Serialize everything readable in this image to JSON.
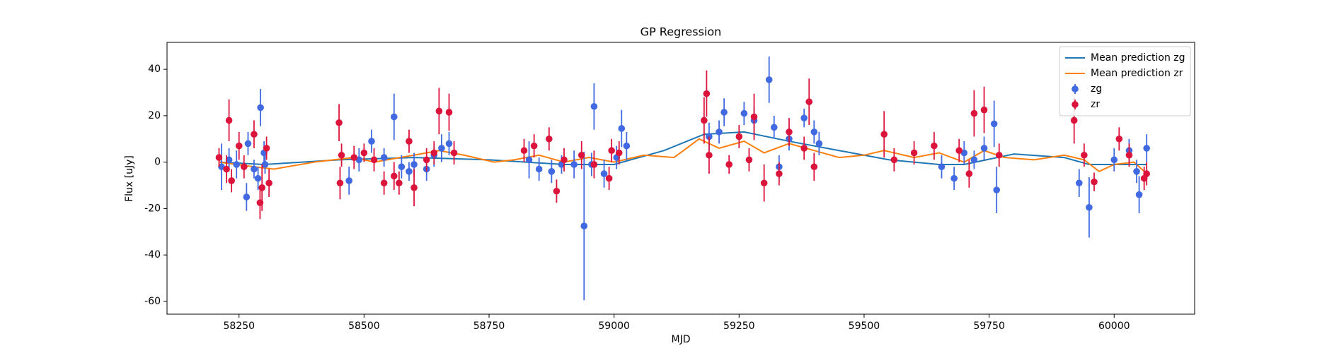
{
  "chart_data": {
    "type": "scatter",
    "title": "GP Regression",
    "x_label": "MJD",
    "y_label": "Flux [uJy]",
    "xlim": [
      58106,
      60161
    ],
    "ylim": [
      -65.5,
      51.6
    ],
    "xticks": [
      58250,
      58500,
      58750,
      59000,
      59250,
      59500,
      59750,
      60000
    ],
    "yticks": [
      -60,
      -40,
      -20,
      0,
      20,
      40
    ],
    "legend": "upper right",
    "series": [
      {
        "name": "Mean prediction zg",
        "kind": "line",
        "color": "#1f77b4",
        "x": [
          58210,
          58300,
          58450,
          58600,
          58750,
          58900,
          59000,
          59100,
          59180,
          59260,
          59350,
          59450,
          59550,
          59650,
          59700,
          59800,
          59900,
          59950,
          60050,
          60065
        ],
        "values": [
          0,
          -1,
          1,
          2,
          1,
          -1,
          -1,
          5,
          12,
          13,
          9,
          5,
          1,
          -1,
          -1,
          3.5,
          2,
          -1,
          -1,
          -1
        ]
      },
      {
        "name": "Mean prediction zr",
        "kind": "line",
        "color": "#ff7f0e",
        "x": [
          58210,
          58280,
          58320,
          58400,
          58480,
          58520,
          58600,
          58650,
          58700,
          58760,
          58800,
          58850,
          58900,
          58950,
          59000,
          59060,
          59120,
          59170,
          59210,
          59260,
          59300,
          59350,
          59400,
          59450,
          59500,
          59540,
          59600,
          59650,
          59700,
          59740,
          59780,
          59840,
          59900,
          59940,
          59970,
          60000,
          60040,
          60065
        ],
        "values": [
          0,
          -2,
          -3,
          0,
          2,
          0,
          3,
          5,
          3,
          0,
          1,
          3,
          0,
          2,
          0,
          3,
          2,
          10,
          6,
          9,
          4,
          8,
          5,
          2,
          3,
          5,
          2,
          4,
          0,
          5,
          2,
          1,
          3,
          1,
          -4,
          -1,
          0,
          -5
        ]
      },
      {
        "name": "zg",
        "kind": "errorbar",
        "color": "#4169e1",
        "x": [
          58215,
          58230,
          58245,
          58265,
          58268,
          58280,
          58288,
          58293,
          58300,
          58302,
          58470,
          58490,
          58515,
          58540,
          58560,
          58575,
          58590,
          58600,
          58625,
          58640,
          58655,
          58670,
          58830,
          58850,
          58875,
          58895,
          58920,
          58940,
          58955,
          58960,
          58980,
          59005,
          59015,
          59025,
          59190,
          59210,
          59220,
          59260,
          59280,
          59310,
          59320,
          59330,
          59350,
          59380,
          59400,
          59410,
          59655,
          59680,
          59700,
          59720,
          59740,
          59760,
          59765,
          59930,
          59950,
          60000,
          60030,
          60045,
          60050,
          60065
        ],
        "values": [
          -2,
          1,
          -1,
          -15,
          8,
          -3,
          -7,
          23.5,
          4,
          -1,
          -8,
          1,
          9,
          2,
          19.5,
          -2,
          -4,
          -1,
          -3,
          3,
          6,
          8,
          1,
          -3,
          -4,
          -1,
          -1,
          -27.5,
          -1,
          24,
          -5,
          2,
          14.5,
          7,
          11,
          13,
          21.5,
          21,
          18,
          35.5,
          15,
          -2,
          10,
          19,
          13,
          8,
          -2,
          -7,
          4,
          1,
          6,
          16.5,
          -12,
          -9,
          -19.5,
          1,
          5,
          -4,
          -14,
          6
        ],
        "errors": [
          10,
          5,
          6,
          6,
          5,
          4,
          5,
          8,
          5,
          4,
          6,
          5,
          5,
          4,
          10,
          5,
          4,
          5,
          5,
          5,
          6,
          5,
          8,
          5,
          5,
          4,
          6,
          32,
          5,
          10,
          6,
          5,
          8,
          6,
          6,
          5,
          6,
          5,
          6,
          10,
          5,
          5,
          5,
          4,
          5,
          5,
          5,
          5,
          5,
          4,
          5,
          10,
          10,
          6,
          13,
          5,
          5,
          5,
          8,
          6
        ]
      },
      {
        "name": "zr",
        "kind": "errorbar",
        "color": "#dc143c",
        "x": [
          58210,
          58225,
          58230,
          58235,
          58250,
          58260,
          58280,
          58292,
          58296,
          58305,
          58310,
          58450,
          58452,
          58455,
          58480,
          58500,
          58520,
          58540,
          58560,
          58570,
          58590,
          58600,
          58625,
          58640,
          58650,
          58670,
          58680,
          58820,
          58840,
          58870,
          58885,
          58900,
          58935,
          58960,
          58990,
          58995,
          59010,
          59180,
          59185,
          59190,
          59230,
          59250,
          59270,
          59280,
          59300,
          59330,
          59350,
          59380,
          59390,
          59400,
          59540,
          59560,
          59600,
          59640,
          59690,
          59710,
          59720,
          59740,
          59770,
          59920,
          59940,
          59960,
          60010,
          60030,
          60060,
          60065
        ],
        "values": [
          2,
          -3,
          18,
          -8,
          7,
          -2,
          12,
          -17.5,
          -11,
          6,
          -9,
          17,
          -9,
          3,
          2,
          4,
          1,
          -9,
          -6,
          -9,
          9,
          -11,
          1,
          4,
          22,
          21.5,
          4,
          5,
          7,
          10,
          -12.5,
          1,
          3,
          -1,
          -7,
          5,
          4,
          18,
          29.5,
          3,
          -1,
          11,
          1,
          19.5,
          -9,
          -5,
          13,
          6,
          26,
          -2,
          12,
          1,
          4,
          7,
          5,
          -5,
          21,
          22.5,
          3,
          18,
          3,
          -8.5,
          10,
          3,
          -7,
          -5
        ],
        "errors": [
          4,
          6,
          9,
          5,
          6,
          5,
          6,
          7,
          10,
          5,
          6,
          8,
          7,
          5,
          5,
          4,
          5,
          5,
          6,
          5,
          5,
          8,
          5,
          5,
          10,
          8,
          5,
          5,
          5,
          5,
          5,
          5,
          6,
          6,
          5,
          5,
          5,
          10,
          10,
          8,
          4,
          5,
          5,
          10,
          8,
          5,
          6,
          5,
          10,
          6,
          10,
          5,
          5,
          6,
          5,
          6,
          10,
          10,
          5,
          10,
          5,
          4,
          5,
          5,
          5,
          5
        ]
      }
    ]
  }
}
